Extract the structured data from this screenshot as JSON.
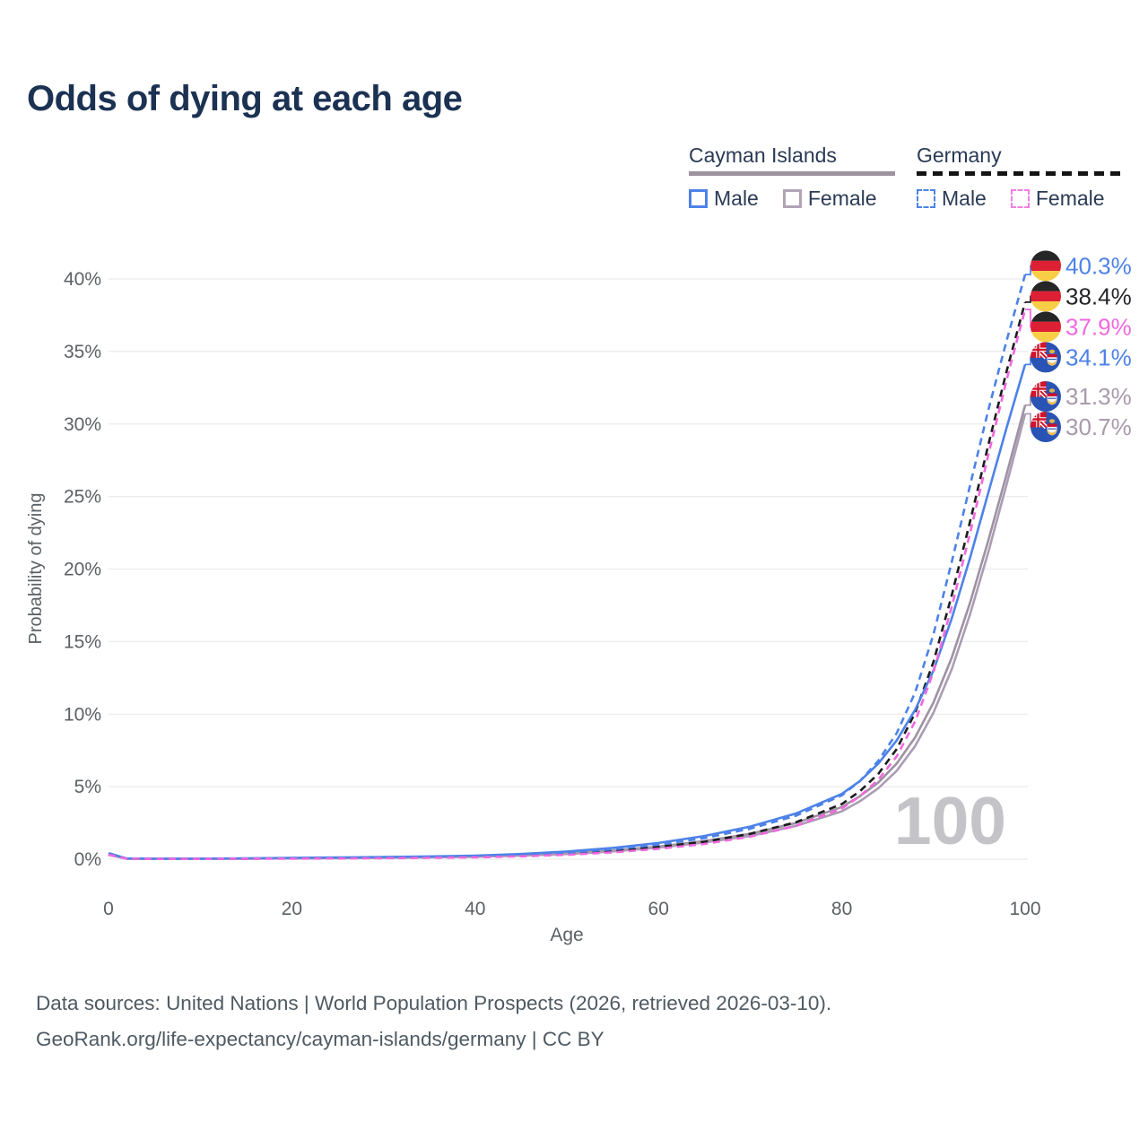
{
  "title": "Odds of dying at each age",
  "legend": {
    "cayman": {
      "label": "Cayman Islands",
      "male_label": "Male",
      "female_label": "Female"
    },
    "germany": {
      "label": "Germany",
      "male_label": "Male",
      "female_label": "Female"
    }
  },
  "colors": {
    "male_blue": "#4d82e8",
    "cayman_female_mauve": "#ab9cb4",
    "cayman_total_gray": "#9e92a2",
    "germany_female_pink": "#f168de",
    "germany_total_black": "#1c1c1e",
    "grid": "#ebebee",
    "axis_text": "#5c6165",
    "title_text": "#1c3253",
    "watermark": "#c4c4c8",
    "footer_text": "#4e5a62",
    "legend_underline_cayman": "#9d92a0",
    "legend_underline_germany": "#141414"
  },
  "chart_data": {
    "type": "line",
    "title": "Odds of dying at each age",
    "xlabel": "Age",
    "ylabel": "Probability of dying",
    "xlim": [
      0,
      100
    ],
    "ylim": [
      0,
      42
    ],
    "grid": true,
    "legend_position": "top-right",
    "watermark": "100",
    "x_ticks": [
      0,
      20,
      40,
      60,
      80,
      100
    ],
    "y_ticks": [
      {
        "v": 0,
        "label": "0%"
      },
      {
        "v": 5,
        "label": "5%"
      },
      {
        "v": 10,
        "label": "10%"
      },
      {
        "v": 15,
        "label": "15%"
      },
      {
        "v": 20,
        "label": "20%"
      },
      {
        "v": 25,
        "label": "25%"
      },
      {
        "v": 30,
        "label": "30%"
      },
      {
        "v": 35,
        "label": "35%"
      },
      {
        "v": 40,
        "label": "40%"
      }
    ],
    "ages": [
      0,
      2,
      5,
      10,
      15,
      20,
      25,
      30,
      35,
      40,
      45,
      50,
      55,
      60,
      65,
      70,
      75,
      80,
      82,
      84,
      86,
      88,
      90,
      92,
      94,
      96,
      98,
      100
    ],
    "series": [
      {
        "name": "Germany — Male",
        "country": "Germany",
        "sex": "Male",
        "flag": "de",
        "color": "#4d82e8",
        "dash": true,
        "end_value": 40.3,
        "end_label": "40.3%",
        "label_color": "#4d82e8",
        "values": [
          0.38,
          0.04,
          0.03,
          0.03,
          0.05,
          0.08,
          0.1,
          0.12,
          0.15,
          0.2,
          0.3,
          0.45,
          0.68,
          1.0,
          1.45,
          2.1,
          3.0,
          4.4,
          5.4,
          6.8,
          8.7,
          11.5,
          15.5,
          20.5,
          25.8,
          31.0,
          35.8,
          40.3
        ]
      },
      {
        "name": "Germany — Both sexes",
        "country": "Germany",
        "sex": "Both",
        "flag": "de",
        "color": "#1c1c1e",
        "dash": true,
        "end_value": 38.4,
        "end_label": "38.4%",
        "label_color": "#26262a",
        "values": [
          0.32,
          0.035,
          0.025,
          0.025,
          0.04,
          0.06,
          0.08,
          0.1,
          0.13,
          0.17,
          0.25,
          0.38,
          0.57,
          0.85,
          1.2,
          1.75,
          2.55,
          3.8,
          4.7,
          5.9,
          7.6,
          10.1,
          13.6,
          18.2,
          23.3,
          28.6,
          33.7,
          38.4
        ]
      },
      {
        "name": "Germany — Female",
        "country": "Germany",
        "sex": "Female",
        "flag": "de",
        "color": "#f168de",
        "dash": true,
        "end_value": 37.9,
        "end_label": "37.9%",
        "label_color": "#f168de",
        "values": [
          0.3,
          0.03,
          0.02,
          0.02,
          0.03,
          0.04,
          0.05,
          0.07,
          0.09,
          0.13,
          0.2,
          0.3,
          0.47,
          0.72,
          1.05,
          1.55,
          2.3,
          3.5,
          4.35,
          5.5,
          7.1,
          9.5,
          12.9,
          17.4,
          22.5,
          27.9,
          33.1,
          37.9
        ]
      },
      {
        "name": "Cayman Islands — Male",
        "country": "Cayman Islands",
        "sex": "Male",
        "flag": "ky",
        "color": "#4d82e8",
        "dash": false,
        "end_value": 34.1,
        "end_label": "34.1%",
        "label_color": "#4d82e8",
        "values": [
          0.42,
          0.05,
          0.04,
          0.04,
          0.06,
          0.09,
          0.12,
          0.15,
          0.19,
          0.25,
          0.36,
          0.53,
          0.78,
          1.12,
          1.6,
          2.25,
          3.15,
          4.5,
          5.4,
          6.6,
          8.2,
          10.3,
          13.0,
          16.6,
          20.8,
          25.3,
          29.8,
          34.1
        ]
      },
      {
        "name": "Cayman Islands — Both sexes",
        "country": "Cayman Islands",
        "sex": "Both",
        "flag": "ky",
        "color": "#9e92a2",
        "dash": false,
        "end_value": 31.3,
        "end_label": "31.3%",
        "label_color": "#a89aac",
        "values": [
          0.36,
          0.04,
          0.03,
          0.03,
          0.045,
          0.065,
          0.085,
          0.11,
          0.14,
          0.19,
          0.27,
          0.4,
          0.6,
          0.87,
          1.25,
          1.75,
          2.5,
          3.6,
          4.35,
          5.3,
          6.6,
          8.4,
          10.8,
          13.9,
          17.7,
          22.0,
          26.6,
          31.3
        ]
      },
      {
        "name": "Cayman Islands — Female",
        "country": "Cayman Islands",
        "sex": "Female",
        "flag": "ky",
        "color": "#ab9cb4",
        "dash": false,
        "end_value": 30.7,
        "end_label": "30.7%",
        "label_color": "#a89aac",
        "values": [
          0.3,
          0.035,
          0.025,
          0.025,
          0.04,
          0.055,
          0.075,
          0.095,
          0.125,
          0.17,
          0.24,
          0.36,
          0.54,
          0.8,
          1.15,
          1.6,
          2.3,
          3.3,
          4.0,
          4.9,
          6.1,
          7.8,
          10.1,
          13.1,
          16.9,
          21.2,
          25.9,
          30.7
        ]
      }
    ]
  },
  "footer": {
    "line1": "Data sources: United Nations | World Population Prospects (2026, retrieved 2026-03-10).",
    "line2": "GeoRank.org/life-expectancy/cayman-islands/germany | CC BY"
  }
}
